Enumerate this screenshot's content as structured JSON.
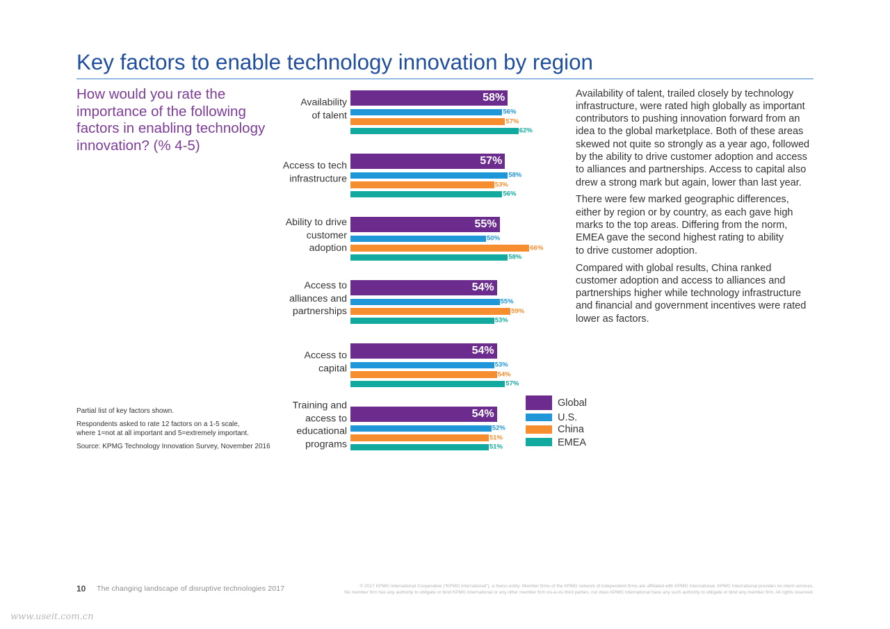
{
  "theme": {
    "title_color": "#1f4e9e",
    "rule_color": "#3a82c8",
    "question_color": "#7d3c98",
    "text_color": "#333333"
  },
  "page": {
    "title": "Key factors to enable technology innovation by region"
  },
  "commentary": {
    "paragraphs": [
      "Availability of talent, trailed closely by technology\ninfrastructure, were rated high globally as important\ncontributors to pushing innovation forward from an\nidea to the global marketplace. Both of these areas\nskewed not quite so strongly as a year ago, followed\nby the ability to drive customer adoption and access\nto alliances and partnerships. Access to capital also\ndrew a strong mark but again, lower than last year.",
      "There were few marked geographic differences,\neither by region or by country, as each gave high\nmarks to the top areas. Differing from the norm,\nEMEA gave the second highest rating to ability\nto drive customer adoption.",
      "Compared with global results, China ranked\ncustomer adoption and access to alliances and\npartnerships higher while technology infrastructure\nand financial and government incentives were rated\nlower as factors."
    ]
  },
  "notes": {
    "partial": "Partial list of key factors shown.",
    "respondents": "Respondents asked to rate 12 factors on a 1-5 scale,\nwhere 1=not at all important and 5=extremely important.",
    "source": "Source: KPMG Technology Innovation Survey, November 2016"
  },
  "footer": {
    "page_number": "10",
    "publication": "The changing landscape of disruptive technologies 2017",
    "legal": "© 2017 KPMG International Cooperative (“KPMG International”), a Swiss entity. Member firms of the KPMG network of independent firms are affiliated with KPMG International. KPMG International provides no client services.\nNo member firm has any authority to obligate or bind KPMG International or any other member firm vis-à-vis third parties, nor does KPMG International have any such authority to obligate or bind any member firm. All rights reserved."
  },
  "watermark": "www.useit.com.cn",
  "chart_data": {
    "type": "bar",
    "orientation": "horizontal",
    "title": "How would you rate the\nimportance of the following\nfactors in enabling technology\ninnovation? (% 4-5)",
    "xlabel": "",
    "ylabel": "",
    "categories": [
      "Availability\nof talent",
      "Access to tech\ninfrastructure",
      "Ability to drive\ncustomer\nadoption",
      "Access to\nalliances and\npartnerships",
      "Access to\ncapital",
      "Training and\naccess to\neducational\nprograms"
    ],
    "series": [
      {
        "name": "Global",
        "color": "#6b2c8e",
        "values": [
          58,
          57,
          55,
          54,
          54,
          54
        ]
      },
      {
        "name": "U.S.",
        "color": "#1f96d7",
        "values": [
          56,
          58,
          50,
          55,
          53,
          52
        ]
      },
      {
        "name": "China",
        "color": "#f68d2e",
        "values": [
          57,
          53,
          66,
          59,
          54,
          51
        ]
      },
      {
        "name": "EMEA",
        "color": "#12aa9e",
        "values": [
          62,
          56,
          58,
          53,
          57,
          51
        ]
      }
    ],
    "value_label_suffix": "%",
    "xlim": [
      0,
      100
    ],
    "grid": false,
    "axes_visible": false,
    "legend_position": "right"
  }
}
